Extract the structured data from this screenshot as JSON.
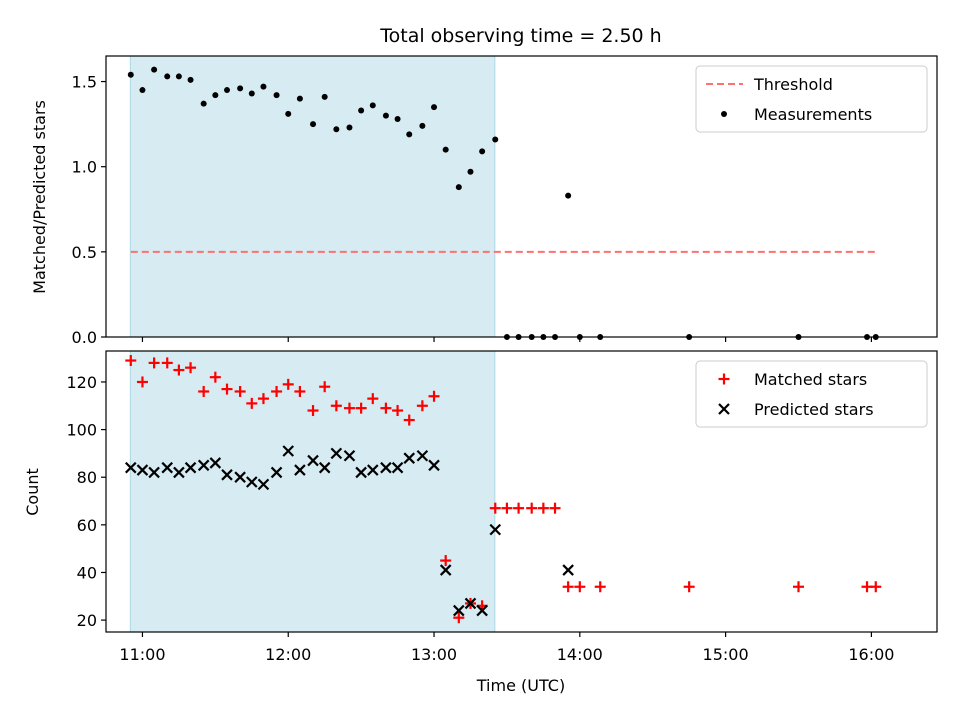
{
  "chart_data": [
    {
      "type": "scatter",
      "title": "Total observing time = 2.50 h",
      "ylabel": "Matched/Predicted stars",
      "xlim": [
        10.75,
        16.45
      ],
      "ylim": [
        0,
        1.65
      ],
      "yticks": [
        0.0,
        0.5,
        1.0,
        1.5
      ],
      "ytick_labels": [
        "0.0",
        "0.5",
        "1.0",
        "1.5"
      ],
      "xticks": [
        11,
        12,
        13,
        14,
        15,
        16
      ],
      "observing_window": [
        10.917,
        13.417
      ],
      "window_color": "#add8e6",
      "legend_position": "top-right",
      "series": [
        {
          "name": "Threshold",
          "kind": "line",
          "style": "dashed",
          "color": "#ff7070",
          "x": [
            10.92,
            16.05
          ],
          "y": [
            0.5,
            0.5
          ]
        },
        {
          "name": "Measurements",
          "kind": "scatter",
          "marker": "dot",
          "color": "#000000",
          "x": [
            10.92,
            11.0,
            11.08,
            11.17,
            11.25,
            11.33,
            11.42,
            11.5,
            11.58,
            11.67,
            11.75,
            11.83,
            11.92,
            12.0,
            12.08,
            12.17,
            12.25,
            12.33,
            12.42,
            12.5,
            12.58,
            12.67,
            12.75,
            12.83,
            12.92,
            13.0,
            13.08,
            13.17,
            13.25,
            13.33,
            13.42,
            13.5,
            13.58,
            13.67,
            13.75,
            13.83,
            13.92,
            14.0,
            14.14,
            14.75,
            15.5,
            15.97,
            16.03
          ],
          "y": [
            1.54,
            1.45,
            1.57,
            1.53,
            1.53,
            1.51,
            1.37,
            1.42,
            1.45,
            1.46,
            1.43,
            1.47,
            1.42,
            1.31,
            1.4,
            1.25,
            1.41,
            1.22,
            1.23,
            1.33,
            1.36,
            1.3,
            1.28,
            1.19,
            1.24,
            1.35,
            1.1,
            0.88,
            0.97,
            1.09,
            1.16,
            0.0,
            0.0,
            0.0,
            0.0,
            0.0,
            0.83,
            0.0,
            0.0,
            0.0,
            0.0,
            0.0,
            0.0
          ]
        }
      ]
    },
    {
      "type": "scatter",
      "xlabel": "Time (UTC)",
      "ylabel": "Count",
      "xlim": [
        10.75,
        16.45
      ],
      "ylim": [
        15,
        133
      ],
      "yticks": [
        20,
        40,
        60,
        80,
        100,
        120
      ],
      "ytick_labels": [
        "20",
        "40",
        "60",
        "80",
        "100",
        "120"
      ],
      "xticks": [
        11,
        12,
        13,
        14,
        15,
        16
      ],
      "xtick_labels": [
        "11:00",
        "12:00",
        "13:00",
        "14:00",
        "15:00",
        "16:00"
      ],
      "observing_window": [
        10.917,
        13.417
      ],
      "window_color": "#add8e6",
      "legend_position": "top-right",
      "series": [
        {
          "name": "Matched stars",
          "marker": "plus",
          "color": "#ff0000",
          "x": [
            10.92,
            11.0,
            11.08,
            11.17,
            11.25,
            11.33,
            11.42,
            11.5,
            11.58,
            11.67,
            11.75,
            11.83,
            11.92,
            12.0,
            12.08,
            12.17,
            12.25,
            12.33,
            12.42,
            12.5,
            12.58,
            12.67,
            12.75,
            12.83,
            12.92,
            13.0,
            13.08,
            13.17,
            13.25,
            13.33,
            13.42,
            13.5,
            13.58,
            13.67,
            13.75,
            13.83,
            13.92,
            14.0,
            14.14,
            14.75,
            15.5,
            15.97,
            16.03
          ],
          "y": [
            129,
            120,
            128,
            128,
            125,
            126,
            116,
            122,
            117,
            116,
            111,
            113,
            116,
            119,
            116,
            108,
            118,
            110,
            109,
            109,
            113,
            109,
            108,
            104,
            110,
            114,
            45,
            21,
            27,
            26,
            67,
            67,
            67,
            67,
            67,
            67,
            34,
            34,
            34,
            34,
            34,
            34,
            34
          ]
        },
        {
          "name": "Predicted stars",
          "marker": "x",
          "color": "#000000",
          "x": [
            10.92,
            11.0,
            11.08,
            11.17,
            11.25,
            11.33,
            11.42,
            11.5,
            11.58,
            11.67,
            11.75,
            11.83,
            11.92,
            12.0,
            12.08,
            12.17,
            12.25,
            12.33,
            12.42,
            12.5,
            12.58,
            12.67,
            12.75,
            12.83,
            12.92,
            13.0,
            13.08,
            13.17,
            13.25,
            13.33,
            13.42,
            13.92
          ],
          "y": [
            84,
            83,
            82,
            84,
            82,
            84,
            85,
            86,
            81,
            80,
            78,
            77,
            82,
            91,
            83,
            87,
            84,
            90,
            89,
            82,
            83,
            84,
            84,
            88,
            89,
            85,
            41,
            24,
            27,
            24,
            58,
            41
          ]
        }
      ]
    }
  ]
}
